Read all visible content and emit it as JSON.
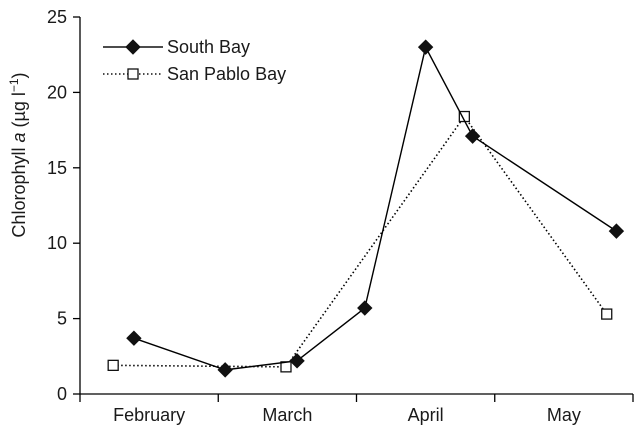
{
  "chart_data": {
    "type": "line",
    "ylabel_main": "Chlorophyll ",
    "ylabel_italic": "a",
    "ylabel_unit": " (µg l",
    "ylabel_sup": "−1",
    "ylabel_close": ")",
    "xlabel": "",
    "ylim": [
      0,
      25
    ],
    "yticks": [
      "0",
      "5",
      "10",
      "15",
      "20",
      "25"
    ],
    "categories": [
      "February",
      "March",
      "April",
      "May"
    ],
    "xlim": [
      0,
      4
    ],
    "grid": false,
    "legend_position": "top-left",
    "series": [
      {
        "name": "South Bay",
        "marker": "filled-diamond",
        "line_style": "solid",
        "color": "#000000",
        "points": [
          {
            "x": 0.39,
            "y": 3.7
          },
          {
            "x": 1.05,
            "y": 1.6
          },
          {
            "x": 1.57,
            "y": 2.2
          },
          {
            "x": 2.06,
            "y": 5.7
          },
          {
            "x": 2.5,
            "y": 23.0
          },
          {
            "x": 2.84,
            "y": 17.1
          },
          {
            "x": 3.88,
            "y": 10.8
          }
        ]
      },
      {
        "name": "San Pablo Bay",
        "marker": "open-square",
        "line_style": "dotted",
        "color": "#000000",
        "points": [
          {
            "x": 0.24,
            "y": 1.9
          },
          {
            "x": 1.49,
            "y": 1.8
          },
          {
            "x": 2.78,
            "y": 18.4
          },
          {
            "x": 3.81,
            "y": 5.3
          }
        ]
      }
    ]
  }
}
